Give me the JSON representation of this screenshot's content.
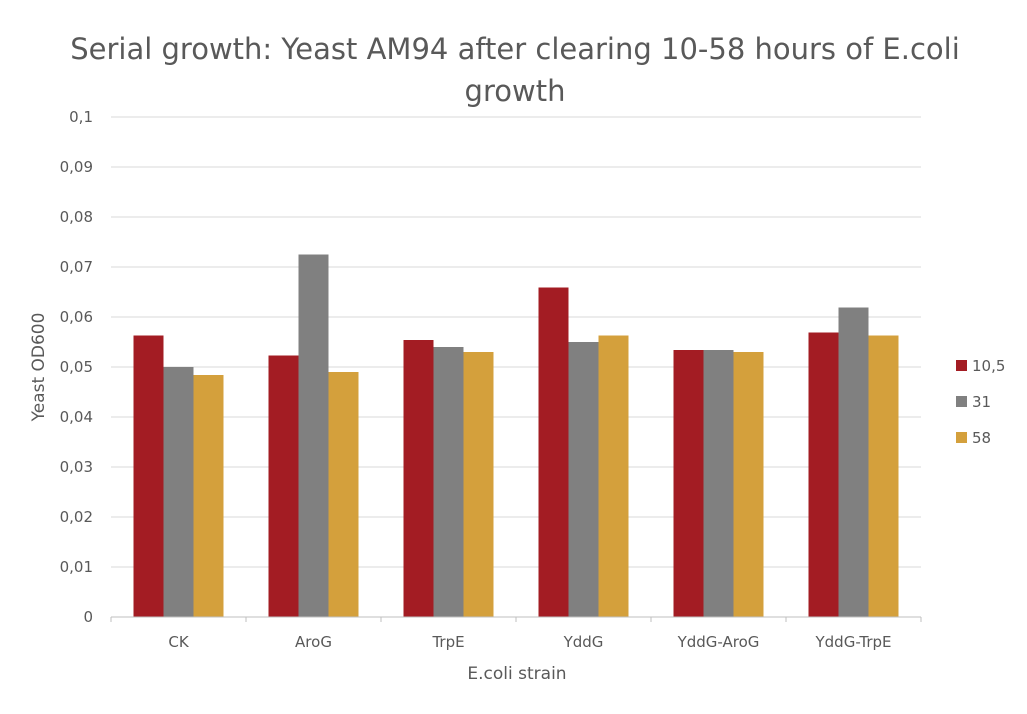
{
  "chart_data": {
    "type": "bar",
    "title": "Serial growth: Yeast AM94 after clearing 10-58 hours of E.coli growth",
    "xlabel": "E.coli strain",
    "ylabel": "Yeast OD600",
    "categories": [
      "CK",
      "AroG",
      "TrpE",
      "YddG",
      "YddG-AroG",
      "YddG-TrpE"
    ],
    "series": [
      {
        "name": "10,5",
        "color": "#a31c23",
        "values": [
          0.0563,
          0.0523,
          0.0554,
          0.0659,
          0.0534,
          0.0569
        ]
      },
      {
        "name": "31",
        "color": "#808080",
        "values": [
          0.05,
          0.0725,
          0.054,
          0.055,
          0.0534,
          0.0619
        ]
      },
      {
        "name": "58",
        "color": "#d4a03c",
        "values": [
          0.0484,
          0.049,
          0.053,
          0.0563,
          0.053,
          0.0563
        ]
      }
    ],
    "ylim": [
      0,
      0.1
    ],
    "yticks": [
      "0",
      "0,01",
      "0,02",
      "0,03",
      "0,04",
      "0,05",
      "0,06",
      "0,07",
      "0,08",
      "0,09",
      "0,1"
    ],
    "grid": true,
    "legend_position": "right",
    "gridline_color": "#d9d9d9",
    "axis_color": "#bfbfbf"
  }
}
